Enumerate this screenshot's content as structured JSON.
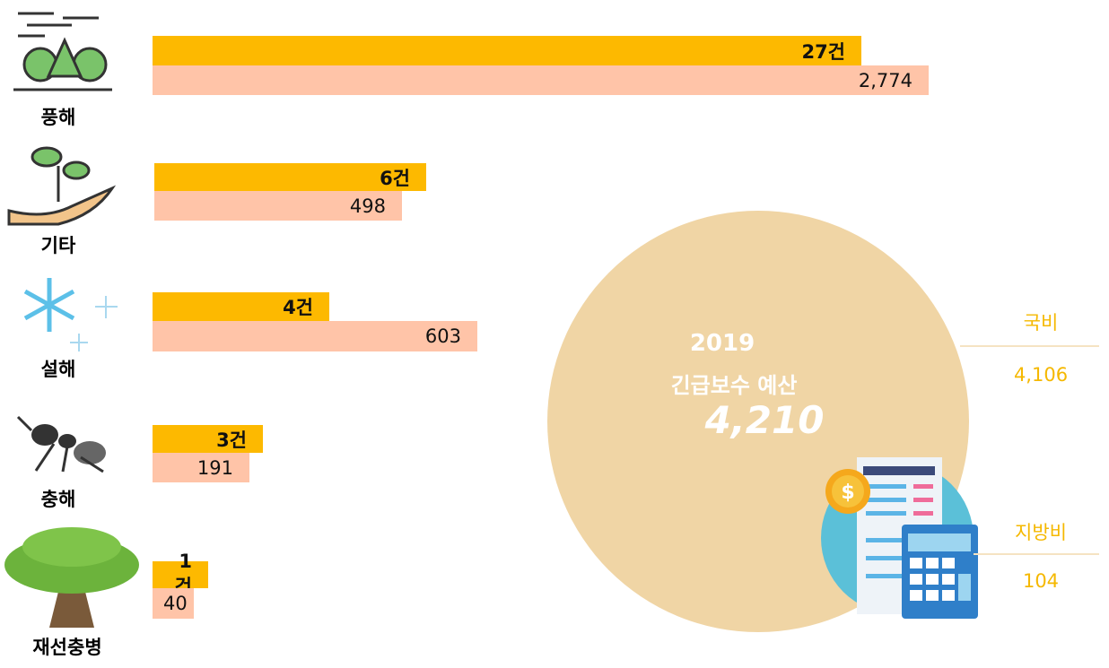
{
  "items": [
    {
      "label": "풍해",
      "count": "27건",
      "budget": "2,774"
    },
    {
      "label": "기타",
      "count": "6건",
      "budget": "498"
    },
    {
      "label": "설해",
      "count": "4건",
      "budget": "603"
    },
    {
      "label": "충해",
      "count": "3건",
      "budget": "191"
    },
    {
      "label": "재선충병",
      "count": "1건",
      "budget": "40"
    }
  ],
  "total": {
    "year": "2019",
    "label": "긴급보수 예산",
    "value": "4,210"
  },
  "breakdown": [
    {
      "label": "국비",
      "value": "4,106"
    },
    {
      "label": "지방비",
      "value": "104"
    }
  ]
}
